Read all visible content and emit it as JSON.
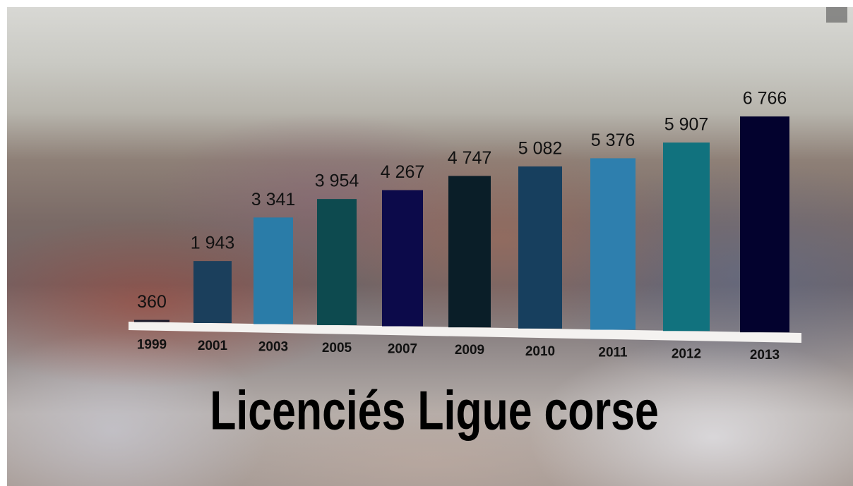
{
  "chart_data": {
    "type": "bar",
    "title": "Licenciés Ligue corse",
    "categories": [
      "1999",
      "2001",
      "2003",
      "2005",
      "2007",
      "2009",
      "2010",
      "2011",
      "2012",
      "2013"
    ],
    "values": [
      360,
      1943,
      3341,
      3954,
      4267,
      4747,
      5082,
      5376,
      5907,
      6766
    ],
    "value_labels": [
      "360",
      "1 943",
      "3 341",
      "3 954",
      "4 267",
      "4 747",
      "5 082",
      "5 376",
      "5 907",
      "6 766"
    ],
    "colors": [
      "#1c1c2c",
      "#1b3f5c",
      "#2a7ca8",
      "#0d4a4f",
      "#0c0a4a",
      "#0a1e28",
      "#173f5e",
      "#2e7fae",
      "#11727e",
      "#03022e"
    ]
  }
}
